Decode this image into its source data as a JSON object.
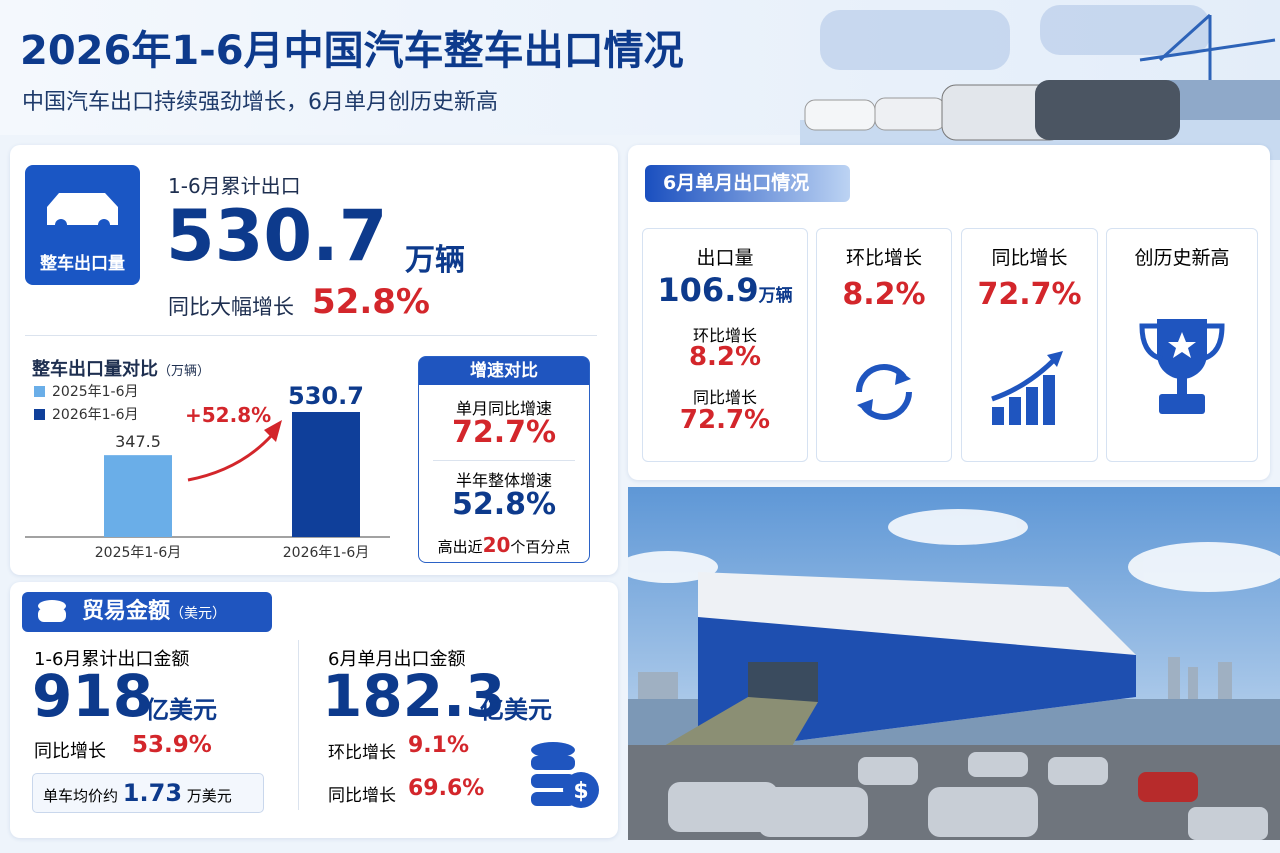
{
  "header": {
    "title": "2026年1-6月中国汽车整车出口情况",
    "subtitle": "中国汽车出口持续强劲增长，6月单月创历史新高"
  },
  "volume": {
    "badge": "整车出口量",
    "label": "1-6月累计出口",
    "value": "530.7",
    "unit": "万辆",
    "growth_label": "同比大幅增长",
    "growth": "52.8%"
  },
  "chart_data": {
    "type": "bar",
    "title": "整车出口量对比",
    "unit": "（万辆）",
    "categories": [
      "2025年1-6月",
      "2026年1-6月"
    ],
    "values": [
      347.5,
      530.7
    ],
    "colors": [
      "#6aaee8",
      "#0f3f9a"
    ],
    "annotation": "+52.8%"
  },
  "growth_compare": {
    "title": "增速对比",
    "items": [
      {
        "label": "单月同比增速",
        "value": "72.7%"
      },
      {
        "label": "半年整体增速",
        "value": "52.8%"
      }
    ],
    "note": [
      "高出近",
      "20",
      "个百分点"
    ]
  },
  "june": {
    "title": "6月单月出口情况",
    "volume": {
      "label": "出口量",
      "value": "106.9",
      "unit": "万辆",
      "items": [
        {
          "label": "环比增长",
          "value": "8.2%"
        },
        {
          "label": "同比增长",
          "value": "72.7%"
        }
      ]
    },
    "cards": [
      {
        "label": "环比增长",
        "value": "8.2%"
      },
      {
        "label": "同比增长",
        "value": "72.7%"
      },
      {
        "label": "创历史新高"
      }
    ]
  },
  "trade": {
    "title": "贸易金额",
    "unit": "（美元）",
    "cumulative": {
      "label": "1-6月累计出口金额",
      "value": "918",
      "unit": "亿美元",
      "growth_label": "同比增长",
      "growth": "53.9%",
      "avg_label": "单车均价约",
      "avg": "1.73",
      "avg_unit": "万美元"
    },
    "june": {
      "label": "6月单月出口金额",
      "value": "182.3",
      "unit": "亿美元",
      "items": [
        {
          "label": "环比增长",
          "value": "9.1%"
        },
        {
          "label": "同比增长",
          "value": "69.6%"
        }
      ]
    }
  }
}
